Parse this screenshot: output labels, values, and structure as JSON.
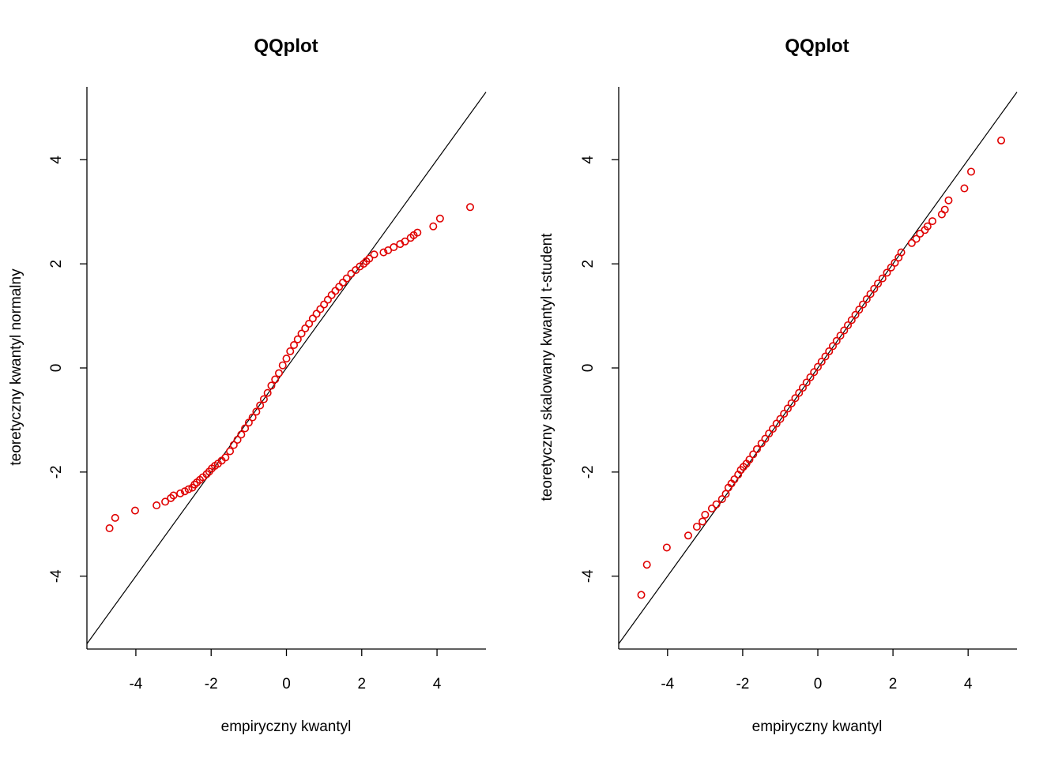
{
  "chart_data": [
    {
      "type": "scatter",
      "title": "QQplot",
      "xlabel": "empiryczny kwantyl",
      "ylabel": "teoretyczny kwantyl normalny",
      "xlim": [
        -5.3,
        5.3
      ],
      "ylim": [
        -5.4,
        5.4
      ],
      "xticks": [
        -4,
        -2,
        0,
        2,
        4
      ],
      "yticks": [
        -4,
        -2,
        0,
        2,
        4
      ],
      "xtick_labels": [
        "-4",
        "-2",
        "0",
        "2",
        "4"
      ],
      "ytick_labels": [
        "-4",
        "-2",
        "0",
        "2",
        "4"
      ],
      "grid": false,
      "reference_line": {
        "slope": 1,
        "intercept": 0,
        "color": "#000000"
      },
      "point_color": "#e00000",
      "marker": "open-circle",
      "series": [
        {
          "x": [
            -4.7,
            -4.55,
            -4.02,
            -3.45,
            -3.22,
            -3.07,
            -3.0,
            -2.82,
            -2.7,
            -2.6,
            -2.5,
            -2.44,
            -2.38,
            -2.3,
            -2.22,
            -2.12,
            -2.05,
            -1.98,
            -1.9,
            -1.82,
            -1.72,
            -1.62,
            -1.5,
            -1.4,
            -1.3,
            -1.2,
            -1.1,
            -1.0,
            -0.9,
            -0.8,
            -0.7,
            -0.6,
            -0.5,
            -0.4,
            -0.3,
            -0.2,
            -0.1,
            0.0,
            0.1,
            0.2,
            0.3,
            0.4,
            0.5,
            0.6,
            0.7,
            0.8,
            0.9,
            1.0,
            1.1,
            1.2,
            1.3,
            1.4,
            1.5,
            1.6,
            1.72,
            1.84,
            1.95,
            2.05,
            2.12,
            2.2,
            2.33,
            2.58,
            2.7,
            2.85,
            3.02,
            3.15,
            3.3,
            3.38,
            3.48,
            3.9,
            4.08,
            4.88
          ],
          "y": [
            -3.08,
            -2.88,
            -2.74,
            -2.64,
            -2.57,
            -2.5,
            -2.45,
            -2.41,
            -2.37,
            -2.33,
            -2.3,
            -2.24,
            -2.2,
            -2.15,
            -2.1,
            -2.04,
            -1.99,
            -1.93,
            -1.88,
            -1.84,
            -1.78,
            -1.72,
            -1.6,
            -1.48,
            -1.38,
            -1.28,
            -1.16,
            -1.05,
            -0.95,
            -0.84,
            -0.72,
            -0.6,
            -0.48,
            -0.34,
            -0.22,
            -0.1,
            0.05,
            0.18,
            0.32,
            0.44,
            0.55,
            0.66,
            0.76,
            0.85,
            0.95,
            1.04,
            1.13,
            1.22,
            1.31,
            1.4,
            1.48,
            1.56,
            1.64,
            1.72,
            1.81,
            1.88,
            1.95,
            2.0,
            2.05,
            2.1,
            2.18,
            2.22,
            2.26,
            2.32,
            2.38,
            2.43,
            2.5,
            2.55,
            2.6,
            2.72,
            2.87,
            3.09
          ]
        }
      ]
    },
    {
      "type": "scatter",
      "title": "QQplot",
      "xlabel": "empiryczny kwantyl",
      "ylabel": "teoretyczny skalowany kwantyl t-student",
      "xlim": [
        -5.3,
        5.3
      ],
      "ylim": [
        -5.4,
        5.4
      ],
      "xticks": [
        -4,
        -2,
        0,
        2,
        4
      ],
      "yticks": [
        -4,
        -2,
        0,
        2,
        4
      ],
      "xtick_labels": [
        "-4",
        "-2",
        "0",
        "2",
        "4"
      ],
      "ytick_labels": [
        "-4",
        "-2",
        "0",
        "2",
        "4"
      ],
      "grid": false,
      "reference_line": {
        "slope": 1,
        "intercept": 0,
        "color": "#000000"
      },
      "point_color": "#e00000",
      "marker": "open-circle",
      "series": [
        {
          "x": [
            -4.7,
            -4.55,
            -4.02,
            -3.45,
            -3.22,
            -3.07,
            -3.0,
            -2.82,
            -2.7,
            -2.55,
            -2.45,
            -2.38,
            -2.3,
            -2.22,
            -2.12,
            -2.05,
            -1.98,
            -1.9,
            -1.82,
            -1.72,
            -1.62,
            -1.5,
            -1.4,
            -1.3,
            -1.2,
            -1.1,
            -1.0,
            -0.9,
            -0.8,
            -0.7,
            -0.6,
            -0.5,
            -0.4,
            -0.3,
            -0.2,
            -0.1,
            0.0,
            0.1,
            0.2,
            0.3,
            0.4,
            0.5,
            0.6,
            0.7,
            0.8,
            0.9,
            1.0,
            1.1,
            1.2,
            1.3,
            1.4,
            1.5,
            1.6,
            1.72,
            1.84,
            1.95,
            2.05,
            2.15,
            2.22,
            2.5,
            2.62,
            2.72,
            2.85,
            2.92,
            3.05,
            3.3,
            3.38,
            3.48,
            3.9,
            4.08,
            4.88
          ],
          "y": [
            -4.36,
            -3.78,
            -3.45,
            -3.22,
            -3.05,
            -2.95,
            -2.82,
            -2.7,
            -2.62,
            -2.52,
            -2.42,
            -2.3,
            -2.22,
            -2.14,
            -2.05,
            -1.96,
            -1.9,
            -1.84,
            -1.76,
            -1.66,
            -1.56,
            -1.45,
            -1.36,
            -1.26,
            -1.17,
            -1.07,
            -0.98,
            -0.88,
            -0.78,
            -0.68,
            -0.58,
            -0.48,
            -0.38,
            -0.28,
            -0.18,
            -0.08,
            0.02,
            0.12,
            0.22,
            0.32,
            0.42,
            0.52,
            0.62,
            0.72,
            0.82,
            0.92,
            1.02,
            1.12,
            1.22,
            1.32,
            1.42,
            1.52,
            1.62,
            1.72,
            1.83,
            1.93,
            2.02,
            2.12,
            2.22,
            2.4,
            2.48,
            2.58,
            2.65,
            2.72,
            2.82,
            2.95,
            3.04,
            3.22,
            3.45,
            3.77,
            4.37
          ]
        }
      ]
    }
  ]
}
